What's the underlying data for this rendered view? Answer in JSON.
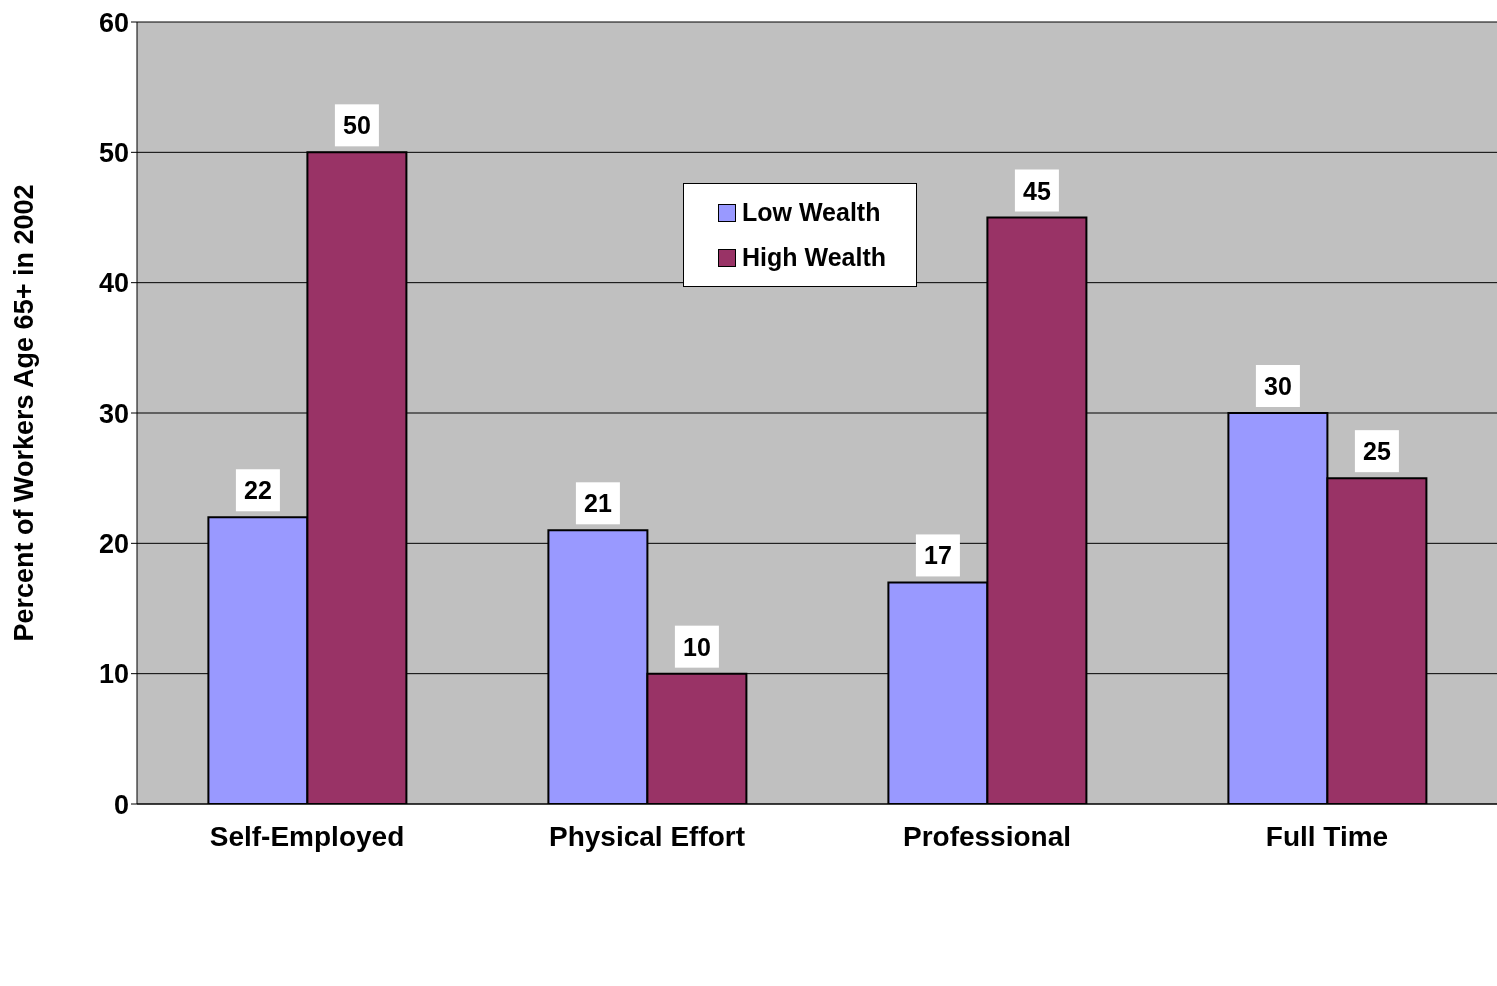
{
  "chart_data": {
    "type": "bar",
    "ylabel": "Percent of Workers Age 65+ in 2002",
    "categories": [
      "Self-Employed",
      "Physical Effort",
      "Professional",
      "Full Time"
    ],
    "series": [
      {
        "name": "Low Wealth",
        "color": "#9999ff",
        "values": [
          22,
          21,
          17,
          30
        ]
      },
      {
        "name": "High Wealth",
        "color": "#993366",
        "values": [
          50,
          10,
          45,
          25
        ]
      }
    ],
    "ylim": [
      0,
      60
    ],
    "yticks": [
      0,
      10,
      20,
      30,
      40,
      50,
      60
    ],
    "grid": "y",
    "legend": "top",
    "data_labels": true
  }
}
